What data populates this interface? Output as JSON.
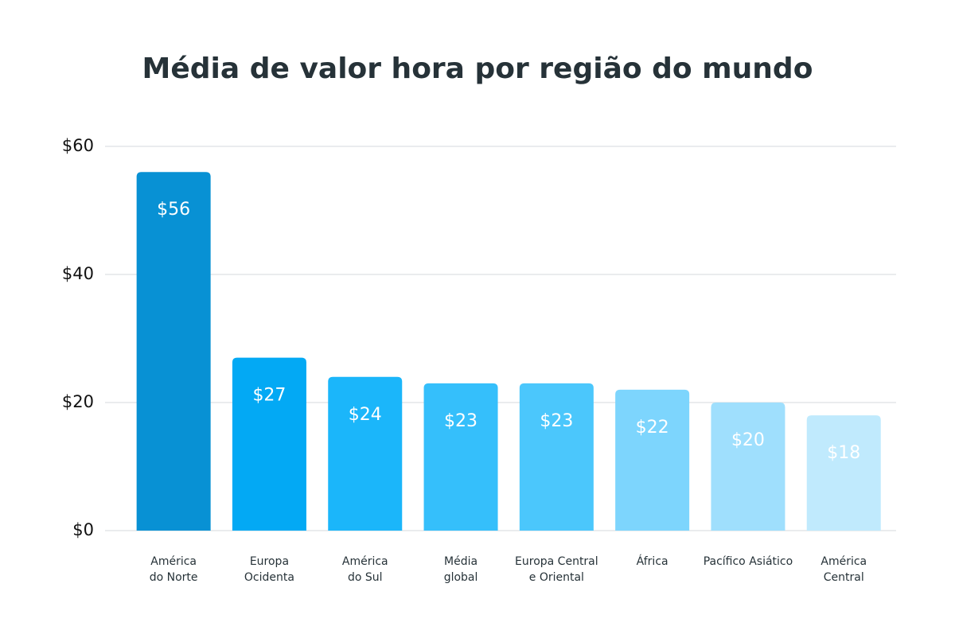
{
  "chart_data": {
    "type": "bar",
    "title": "Média de valor hora por região do mundo",
    "categories": [
      "América\ndo Norte",
      "Europa\nOcidenta",
      "América\ndo Sul",
      "Média\nglobal",
      "Europa Central\ne Oriental",
      "África",
      "Pacífico Asiático",
      "América\nCentral"
    ],
    "values": [
      56,
      27,
      24,
      23,
      23,
      22,
      20,
      18
    ],
    "value_labels": [
      "$56",
      "$27",
      "$24",
      "$23",
      "$23",
      "$22",
      "$20",
      "$18"
    ],
    "colors": [
      "#0891d4",
      "#03a9f4",
      "#1bb6fa",
      "#35bffb",
      "#4bc7fc",
      "#7dd5fd",
      "#9fdffd",
      "#c0eafd"
    ],
    "ylim": [
      0,
      60
    ],
    "yticks": [
      {
        "value": 0,
        "label": "$0"
      },
      {
        "value": 20,
        "label": "$20"
      },
      {
        "value": 40,
        "label": "$40"
      },
      {
        "value": 60,
        "label": "$60"
      }
    ],
    "grid": true
  }
}
